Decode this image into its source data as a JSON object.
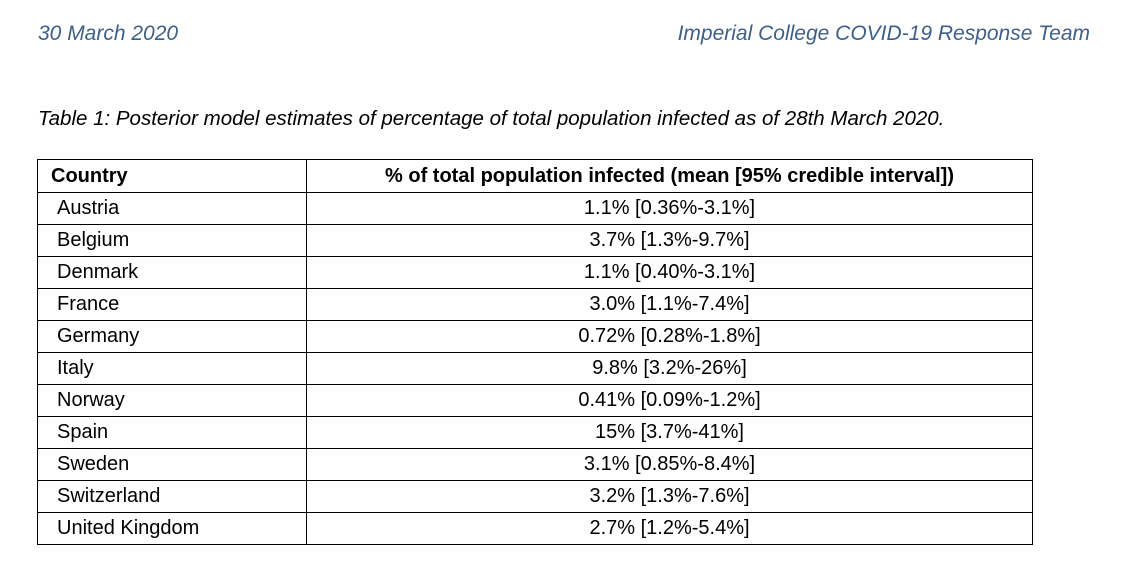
{
  "header": {
    "date": "30 March 2020",
    "team": "Imperial College COVID-19 Response Team"
  },
  "caption": "Table 1: Posterior model estimates of percentage of total population infected as of 28th March 2020.",
  "table": {
    "columns": [
      "Country",
      "% of total population infected (mean [95% credible interval])"
    ],
    "rows": [
      {
        "country": "Austria",
        "value": "1.1% [0.36%-3.1%]"
      },
      {
        "country": "Belgium",
        "value": "3.7% [1.3%-9.7%]"
      },
      {
        "country": "Denmark",
        "value": "1.1% [0.40%-3.1%]"
      },
      {
        "country": "France",
        "value": "3.0% [1.1%-7.4%]"
      },
      {
        "country": "Germany",
        "value": "0.72% [0.28%-1.8%]"
      },
      {
        "country": "Italy",
        "value": "9.8% [3.2%-26%]"
      },
      {
        "country": "Norway",
        "value": "0.41% [0.09%-1.2%]"
      },
      {
        "country": "Spain",
        "value": "15% [3.7%-41%]"
      },
      {
        "country": "Sweden",
        "value": "3.1% [0.85%-8.4%]"
      },
      {
        "country": "Switzerland",
        "value": "3.2% [1.3%-7.6%]"
      },
      {
        "country": "United Kingdom",
        "value": "2.7% [1.2%-5.4%]"
      }
    ]
  },
  "colors": {
    "header_text": "#3c5f8c",
    "body_text": "#000000",
    "border": "#000000"
  }
}
